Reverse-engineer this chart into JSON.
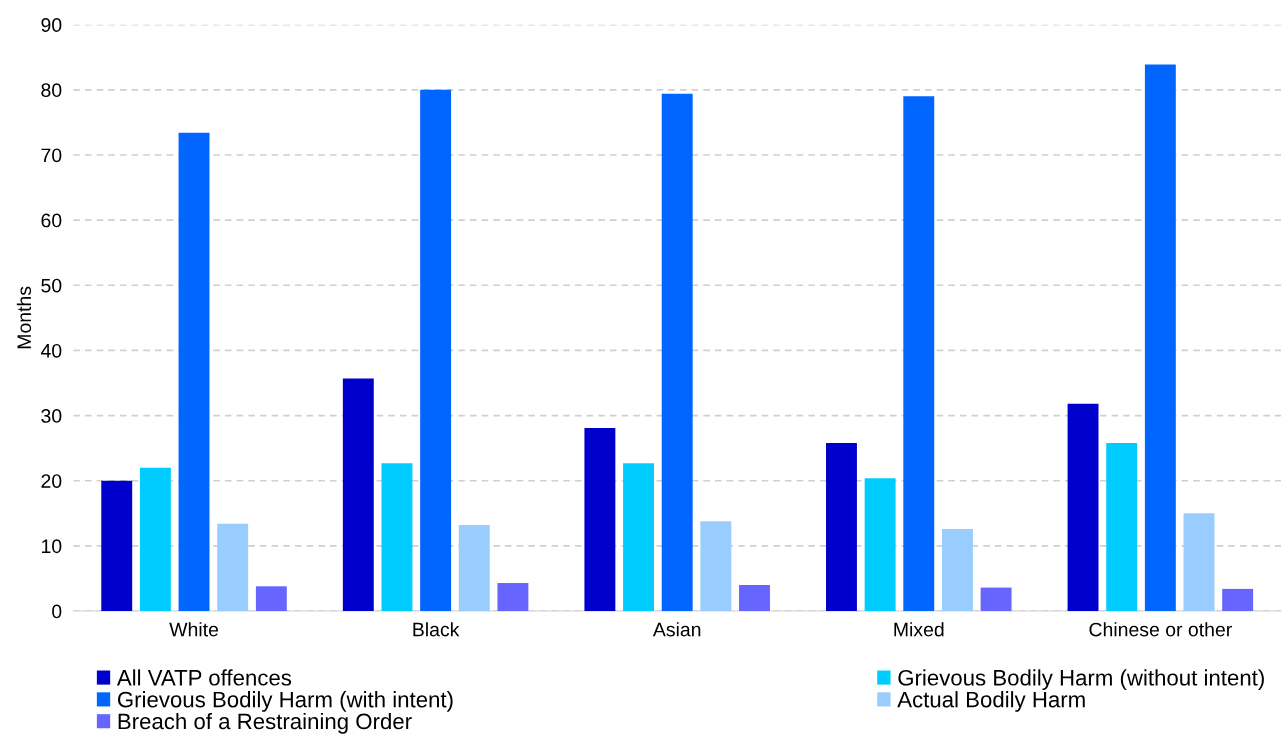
{
  "chart_data": {
    "type": "bar",
    "ylabel": "Months",
    "categories": [
      "White",
      "Black",
      "Asian",
      "Mixed",
      "Chinese or other"
    ],
    "series": [
      {
        "name": "All VATP offences",
        "color": "#0000cc",
        "values": [
          20.0,
          35.7,
          28.1,
          25.8,
          31.8
        ]
      },
      {
        "name": "Grievous Bodily Harm (without intent)",
        "color": "#00ccff",
        "values": [
          22.0,
          22.7,
          22.7,
          20.4,
          25.8
        ]
      },
      {
        "name": "Grievous Bodily Harm (with intent)",
        "color": "#0066ff",
        "values": [
          73.4,
          80.0,
          79.4,
          79.0,
          83.9
        ]
      },
      {
        "name": "Actual Bodily Harm",
        "color": "#99ccff",
        "values": [
          13.4,
          13.2,
          13.8,
          12.6,
          15.0
        ]
      },
      {
        "name": "Breach of a Restraining Order",
        "color": "#6666ff",
        "values": [
          3.8,
          4.3,
          4.0,
          3.6,
          3.4
        ]
      }
    ],
    "ylim": [
      0,
      90
    ],
    "yticks": [
      0,
      10,
      20,
      30,
      40,
      50,
      60,
      70,
      80,
      90
    ],
    "grid": "y",
    "legend": "bottom"
  }
}
